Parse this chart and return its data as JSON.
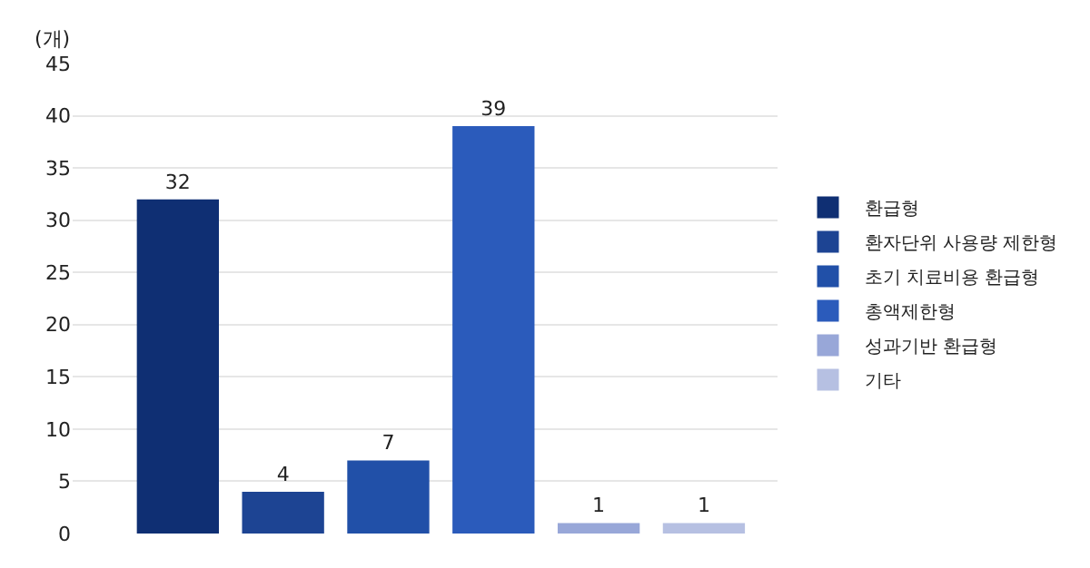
{
  "chart_data": {
    "type": "bar",
    "ylabel": "(개)",
    "categories": [
      null,
      null,
      null,
      null,
      null,
      null
    ],
    "series": [
      {
        "name": "환급형",
        "color": "#0f2f73",
        "values": [
          32,
          null,
          null,
          null,
          null,
          null
        ]
      },
      {
        "name": "환자단위 사용량 제한형",
        "color": "#1d4493",
        "values": [
          null,
          4,
          null,
          null,
          null,
          null
        ]
      },
      {
        "name": "초기 치료비용 환급형",
        "color": "#2150a8",
        "values": [
          null,
          null,
          7,
          null,
          null,
          null
        ]
      },
      {
        "name": "총액제한형",
        "color": "#2b5bbb",
        "values": [
          null,
          null,
          null,
          39,
          null,
          null
        ]
      },
      {
        "name": "성과기반 환급형",
        "color": "#98a7d8",
        "values": [
          null,
          null,
          null,
          null,
          1,
          null
        ]
      },
      {
        "name": "기타",
        "color": "#b6c0e2",
        "values": [
          null,
          null,
          null,
          null,
          null,
          1
        ]
      }
    ],
    "ylim": [
      0,
      45
    ],
    "yticks": [
      0,
      5,
      10,
      15,
      20,
      25,
      30,
      35,
      40,
      45
    ],
    "grid": "y",
    "legend": "right",
    "data_labels": true,
    "tick_labels": "y"
  }
}
